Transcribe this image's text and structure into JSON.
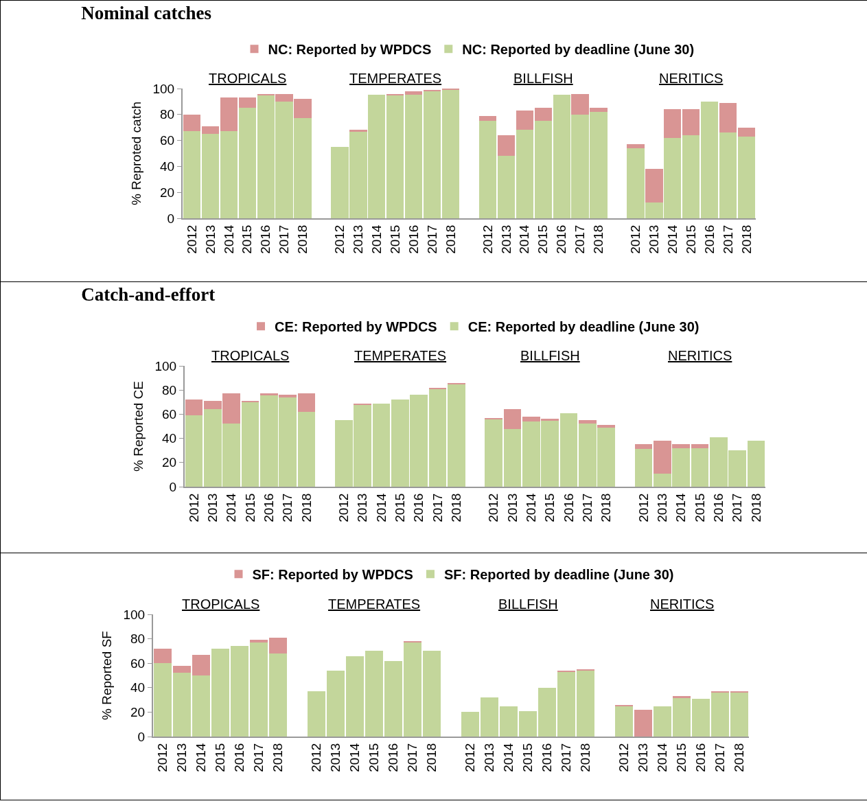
{
  "chart_data": [
    {
      "type": "bar",
      "title": "Nominal catches",
      "ylabel": "% Reproted catch",
      "stacked": true,
      "legend": "top",
      "ylim": [
        0,
        100
      ],
      "yticks": [
        0,
        20,
        40,
        60,
        80,
        100
      ],
      "annotations": [
        "TROPICALS",
        "TEMPERATES",
        "BILLFISH",
        "NERITICS"
      ],
      "categories": [
        "2012",
        "2013",
        "2014",
        "2015",
        "2016",
        "2017",
        "2018",
        null,
        "2012",
        "2013",
        "2014",
        "2015",
        "2016",
        "2017",
        "2018",
        null,
        "2012",
        "2013",
        "2014",
        "2015",
        "2016",
        "2017",
        "2018",
        null,
        "2012",
        "2013",
        "2014",
        "2015",
        "2016",
        "2017",
        "2018"
      ],
      "series": [
        {
          "name": "NC: Reported by deadline (June 30)",
          "color": "#c3d69b",
          "values": [
            67,
            65,
            67,
            85,
            95,
            90,
            77,
            null,
            55,
            67,
            95,
            95,
            95,
            98,
            99,
            null,
            75,
            48,
            68,
            75,
            95,
            80,
            82,
            null,
            54,
            12,
            62,
            64,
            90,
            66,
            63
          ]
        },
        {
          "name": "NC: Reported by WPDCS",
          "color": "#d99594",
          "values": [
            13,
            6,
            26,
            8,
            1,
            6,
            15,
            null,
            null,
            1,
            null,
            1,
            3,
            1,
            1,
            null,
            4,
            16,
            15,
            10,
            null,
            16,
            3,
            null,
            3,
            26,
            22,
            20,
            null,
            23,
            7
          ]
        }
      ]
    },
    {
      "type": "bar",
      "title": "Catch-and-effort",
      "ylabel": "% Reported CE",
      "stacked": true,
      "legend": "top",
      "ylim": [
        0,
        100
      ],
      "yticks": [
        0,
        20,
        40,
        60,
        80,
        100
      ],
      "annotations": [
        "TROPICALS",
        "TEMPERATES",
        "BILLFISH",
        "NERITICS"
      ],
      "categories": [
        "2012",
        "2013",
        "2014",
        "2015",
        "2016",
        "2017",
        "2018",
        null,
        "2012",
        "2013",
        "2014",
        "2015",
        "2016",
        "2017",
        "2018",
        null,
        "2012",
        "2013",
        "2014",
        "2015",
        "2016",
        "2017",
        "2018",
        null,
        "2012",
        "2013",
        "2014",
        "2015",
        "2016",
        "2017",
        "2018"
      ],
      "series": [
        {
          "name": "CE: Reported by deadline (June 30)",
          "color": "#c3d69b",
          "values": [
            59,
            64,
            52,
            70,
            76,
            74,
            62,
            null,
            55,
            68,
            69,
            72,
            76,
            81,
            85,
            null,
            56,
            48,
            54,
            55,
            61,
            52,
            49,
            null,
            31,
            11,
            32,
            32,
            41,
            30,
            38
          ]
        },
        {
          "name": "CE: Reported by WPDCS",
          "color": "#d99594",
          "values": [
            13,
            7,
            25,
            1,
            1,
            2,
            15,
            null,
            null,
            1,
            null,
            null,
            null,
            1,
            1,
            null,
            1,
            16,
            4,
            1,
            null,
            3,
            2,
            null,
            4,
            27,
            3,
            3,
            null,
            null,
            null
          ]
        }
      ]
    },
    {
      "type": "bar",
      "ylabel": "% Reported SF",
      "stacked": true,
      "legend": "top",
      "ylim": [
        0,
        100
      ],
      "yticks": [
        0,
        20,
        40,
        60,
        80,
        100
      ],
      "annotations": [
        "TROPICALS",
        "TEMPERATES",
        "BILLFISH",
        "NERITICS"
      ],
      "categories": [
        "2012",
        "2013",
        "2014",
        "2015",
        "2016",
        "2017",
        "2018",
        null,
        "2012",
        "2013",
        "2014",
        "2015",
        "2016",
        "2017",
        "2018",
        null,
        "2012",
        "2013",
        "2014",
        "2015",
        "2016",
        "2017",
        "2018",
        null,
        "2012",
        "2013",
        "2014",
        "2015",
        "2016",
        "2017",
        "2018"
      ],
      "series": [
        {
          "name": "SF: Reported by deadline (June 30)",
          "color": "#c3d69b",
          "values": [
            60,
            52,
            50,
            72,
            74,
            77,
            68,
            null,
            37,
            54,
            66,
            70,
            62,
            77,
            70,
            null,
            20,
            32,
            25,
            21,
            40,
            53,
            54,
            null,
            25,
            null,
            25,
            32,
            31,
            36,
            36
          ]
        },
        {
          "name": "SF: Reported by WPDCS",
          "color": "#d99594",
          "values": [
            12,
            6,
            17,
            null,
            null,
            2,
            13,
            null,
            null,
            null,
            null,
            null,
            null,
            1,
            null,
            null,
            null,
            null,
            null,
            null,
            null,
            1,
            1,
            null,
            1,
            22,
            null,
            1,
            null,
            1,
            1
          ]
        }
      ]
    }
  ]
}
